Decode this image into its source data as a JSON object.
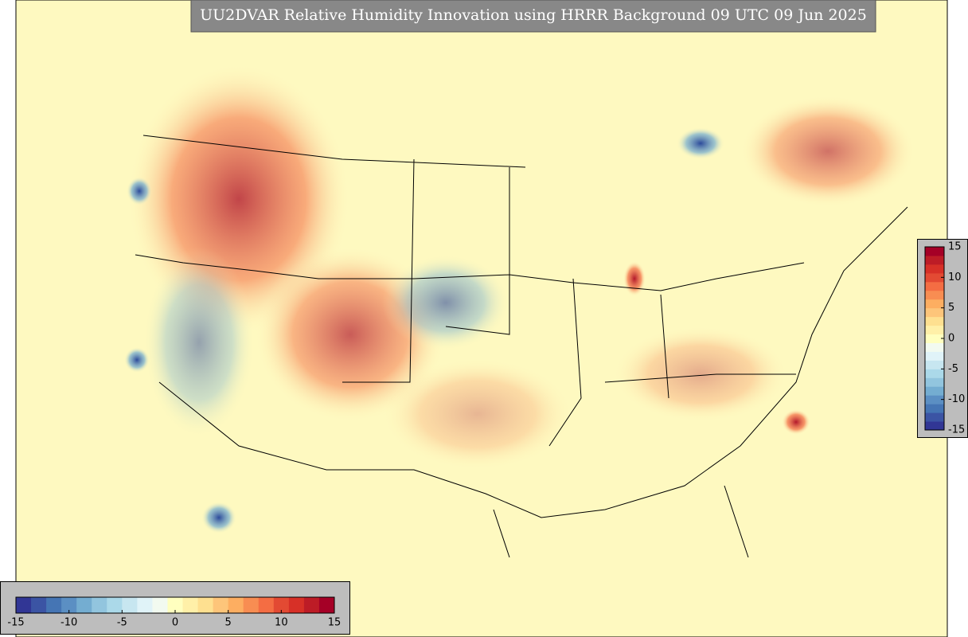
{
  "map": {
    "title": "UU2DVAR Relative Humidity Innovation using HRRR Background 09 UTC 09 Jun 2025",
    "colorbar": {
      "range": [
        -15,
        15
      ],
      "ticks": [
        -15,
        -10,
        -5,
        0,
        5,
        10,
        15
      ],
      "colors": [
        "#313695",
        "#3b54a4",
        "#4575b4",
        "#5b8fc3",
        "#74add1",
        "#92c5de",
        "#abd9e9",
        "#c7e6f0",
        "#e0f3f8",
        "#f2faf0",
        "#ffffbf",
        "#fff0a8",
        "#fee090",
        "#fdc57a",
        "#fdae61",
        "#f88d52",
        "#f46d43",
        "#e34a33",
        "#d73027",
        "#bd1c26",
        "#a50026"
      ]
    }
  }
}
